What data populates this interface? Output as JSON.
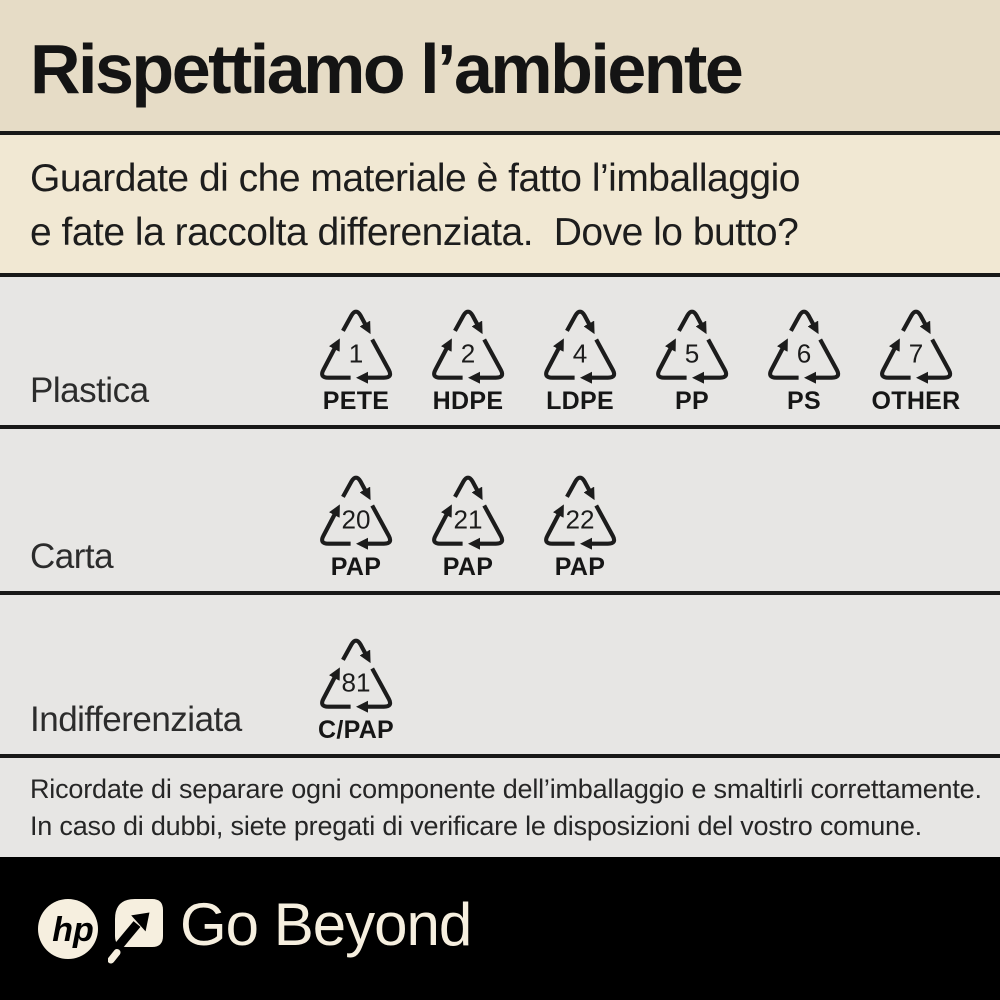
{
  "poster": {
    "title": "Rispettiamo l’ambiente",
    "subtitle_lines": [
      "Guardate di che materiale è fatto l’imballaggio",
      "e fate la raccolta differenziata.  Dove lo butto?"
    ],
    "note_lines": [
      "Ricordate di separare ogni componente dell’imballaggio e smaltirli correttamente.",
      "In caso di dubbi, siete pregati di verificare le disposizioni del vostro comune."
    ],
    "brand": {
      "logo_text": "hp",
      "tagline": "Go Beyond"
    }
  },
  "rows": [
    {
      "label": "Plastica",
      "symbols": [
        {
          "code": "1",
          "material": "PETE"
        },
        {
          "code": "2",
          "material": "HDPE"
        },
        {
          "code": "4",
          "material": "LDPE"
        },
        {
          "code": "5",
          "material": "PP"
        },
        {
          "code": "6",
          "material": "PS"
        },
        {
          "code": "7",
          "material": "OTHER"
        }
      ]
    },
    {
      "label": "Carta",
      "symbols": [
        {
          "code": "20",
          "material": "PAP"
        },
        {
          "code": "21",
          "material": "PAP"
        },
        {
          "code": "22",
          "material": "PAP"
        }
      ]
    },
    {
      "label": "Indifferenziata",
      "symbols": [
        {
          "code": "81",
          "material": "C/PAP"
        }
      ]
    }
  ],
  "colors": {
    "title_band_bg": "#e6dcc6",
    "subtitle_band_bg": "#f1e8d3",
    "rows_bg": "#e7e6e4",
    "divider": "#181818",
    "ink": "#1c1c1c",
    "footer_bg": "#000000",
    "footer_fg": "#f6efdf"
  }
}
